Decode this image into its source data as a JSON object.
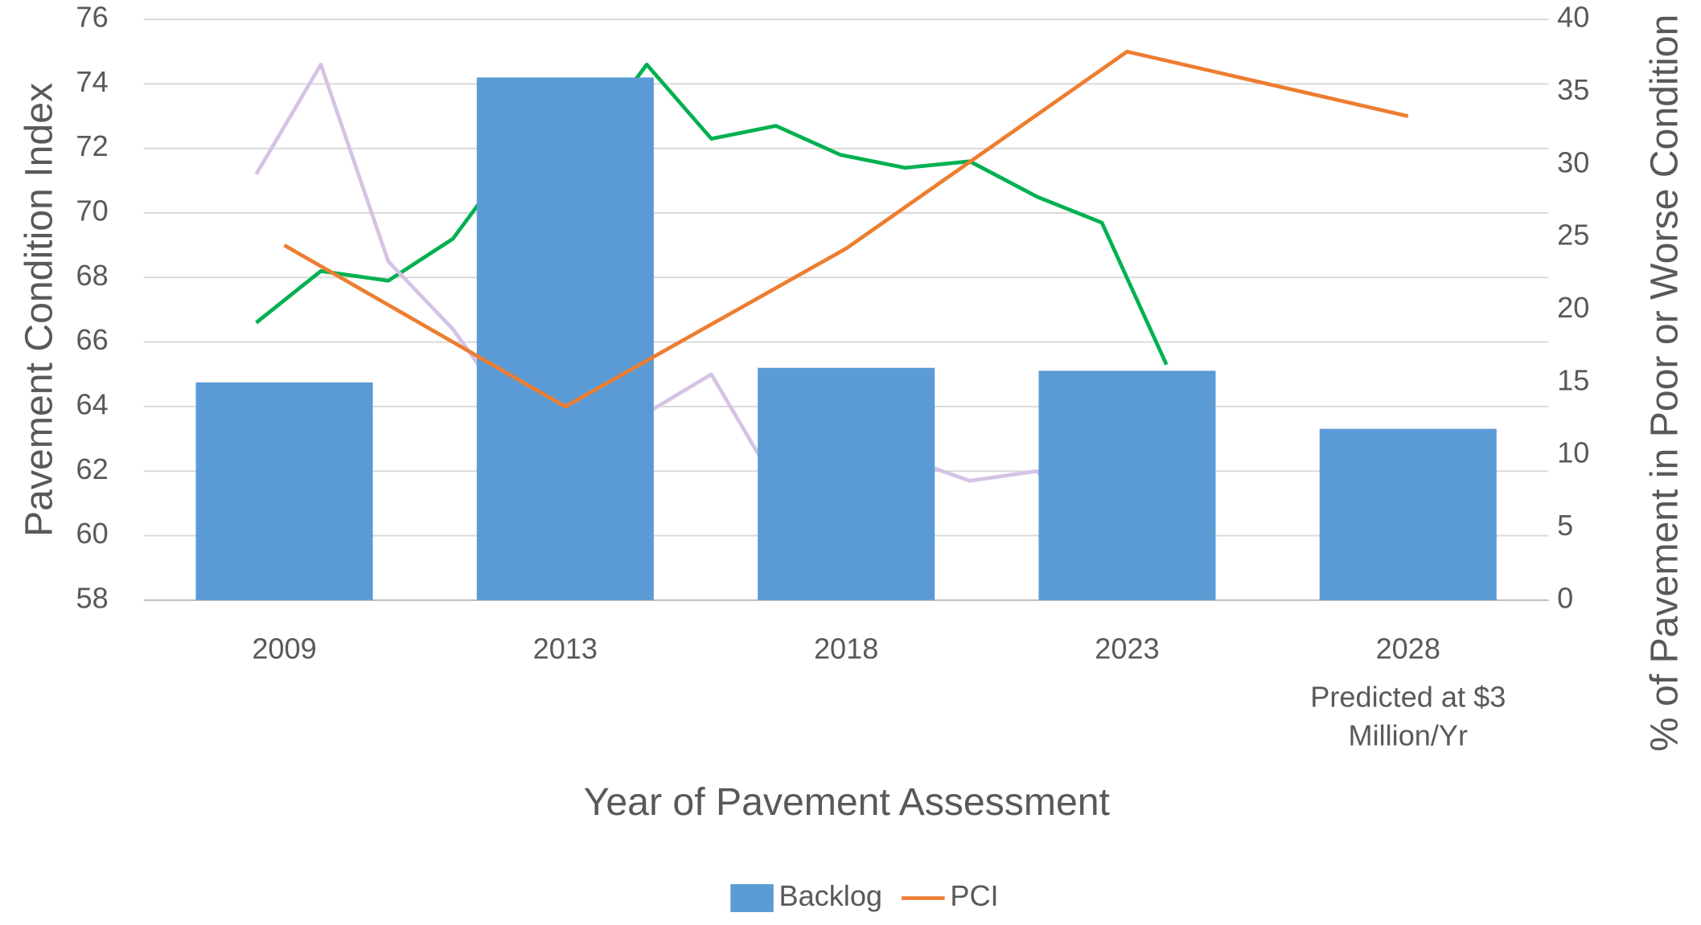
{
  "chart_data": {
    "type": "bar",
    "categories": [
      "2009",
      "2013",
      "2018",
      "2023",
      "2028"
    ],
    "category_note": "Predicted at $3 Million/Yr",
    "x_label": "Year of Pavement Assessment",
    "y_label": "Pavement Condition Index",
    "y2_label": "% of Pavement in Poor or Worse Condition",
    "ylim": [
      58,
      76
    ],
    "yticks": [
      58,
      60,
      62,
      64,
      66,
      68,
      70,
      72,
      74,
      76
    ],
    "y2lim": [
      0,
      40
    ],
    "y2ticks": [
      0,
      5,
      10,
      15,
      20,
      25,
      30,
      35,
      40
    ],
    "grid": true,
    "legend": "bottom",
    "series": [
      {
        "name": "Backlog",
        "type": "bar",
        "axis": "y2",
        "color": "#5b9bd5",
        "values": [
          15,
          36,
          16,
          15.8,
          11.8
        ]
      },
      {
        "name": "PCI",
        "type": "line",
        "color": "#ed7d31",
        "values": [
          69,
          64,
          68.9,
          75,
          73
        ]
      }
    ],
    "lines": [
      {
        "color": "#00b050",
        "x": [
          -0.1,
          0.13,
          0.37,
          0.6,
          0.83,
          1.06,
          1.29,
          1.52,
          1.75,
          1.98,
          2.21,
          2.44,
          2.68,
          2.91,
          3.14
        ],
        "values": [
          66.6,
          68.2,
          67.9,
          69.2,
          71.9,
          71.9,
          74.6,
          72.3,
          72.7,
          71.8,
          71.4,
          71.6,
          70.5,
          69.7,
          65.3
        ]
      },
      {
        "color": "#d5c3e5",
        "x": [
          -0.1,
          0.13,
          0.37,
          0.6,
          0.83,
          1.06,
          1.29,
          1.52,
          1.75,
          1.98,
          2.21,
          2.44,
          2.68,
          2.91,
          3.14
        ],
        "values": [
          71.2,
          74.6,
          68.5,
          66.4,
          63.6,
          63.8,
          63.8,
          65.0,
          61.6,
          62.5,
          62.4,
          61.7,
          62.0,
          59.6,
          60.1
        ]
      }
    ]
  }
}
